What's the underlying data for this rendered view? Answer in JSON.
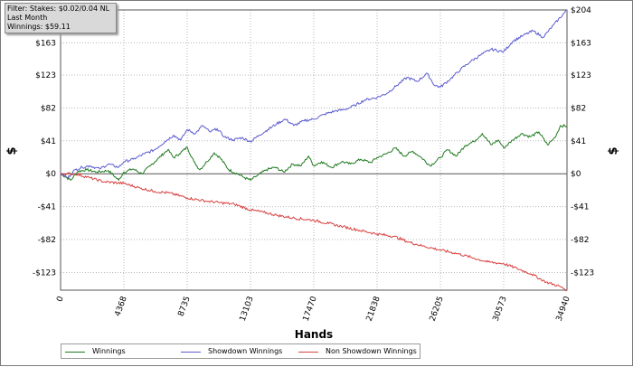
{
  "filter_box": {
    "line1": "Filter: Stakes: $0.02/0.04 NL",
    "line2": "Last Month",
    "line3": "Winnings: $59.11"
  },
  "chart_data": {
    "type": "line",
    "xlabel": "Hands",
    "ylabel": "$",
    "xlim": [
      0,
      34940
    ],
    "ylim": [
      -145,
      204
    ],
    "x_ticks": [
      0,
      4368,
      8735,
      13103,
      17470,
      21838,
      26205,
      30573,
      34940
    ],
    "x_tick_labels": [
      "0",
      "4368",
      "8735",
      "13103",
      "17470",
      "21838",
      "26205",
      "30573",
      "34940"
    ],
    "y_ticks": [
      -123,
      -82,
      -41,
      0,
      41,
      82,
      123,
      163,
      204
    ],
    "y_tick_labels": [
      "-$123",
      "-$82",
      "-$41",
      "$0",
      "$41",
      "$82",
      "$123",
      "$163",
      "$204"
    ],
    "grid": true,
    "legend_position": "bottom",
    "series": [
      {
        "name": "Winnings",
        "color": "#1f7a1f",
        "x": [
          0,
          700,
          1200,
          1800,
          2500,
          3300,
          4000,
          4368,
          5000,
          5600,
          6200,
          6800,
          7400,
          7800,
          8200,
          8735,
          9200,
          9600,
          10100,
          10600,
          11000,
          11600,
          12200,
          12700,
          13103,
          13600,
          14200,
          14800,
          15400,
          16000,
          16600,
          17100,
          17470,
          18000,
          18700,
          19400,
          20000,
          20700,
          21400,
          21838,
          22500,
          23100,
          23700,
          24300,
          24900,
          25500,
          26205,
          26700,
          27300,
          27900,
          28500,
          29100,
          29700,
          30200,
          30573,
          31200,
          31800,
          32400,
          33000,
          33600,
          34100,
          34500,
          34940
        ],
        "y": [
          0,
          -8,
          3,
          5,
          2,
          4,
          -8,
          2,
          6,
          0,
          10,
          20,
          30,
          20,
          25,
          33,
          15,
          5,
          15,
          26,
          20,
          5,
          0,
          -5,
          -8,
          -2,
          5,
          8,
          2,
          12,
          10,
          22,
          10,
          15,
          8,
          15,
          12,
          18,
          14,
          20,
          25,
          32,
          22,
          28,
          20,
          10,
          20,
          30,
          22,
          35,
          40,
          50,
          36,
          42,
          32,
          42,
          50,
          46,
          52,
          36,
          45,
          60,
          59.11
        ]
      },
      {
        "name": "Showdown Winnings",
        "color": "#5a5ad0",
        "x": [
          0,
          500,
          1000,
          1500,
          2000,
          2700,
          3300,
          4000,
          4368,
          5000,
          5800,
          6500,
          7200,
          7800,
          8300,
          8735,
          9300,
          9800,
          10300,
          10800,
          11300,
          11900,
          12500,
          13103,
          13700,
          14300,
          14900,
          15500,
          16100,
          16800,
          17470,
          18200,
          18900,
          19600,
          20300,
          21000,
          21838,
          22500,
          23200,
          23900,
          24600,
          25300,
          25800,
          26205,
          26900,
          27600,
          28300,
          29000,
          29700,
          30573,
          31200,
          31900,
          32600,
          33300,
          34000,
          34940
        ],
        "y": [
          0,
          -5,
          5,
          8,
          10,
          6,
          12,
          8,
          15,
          18,
          25,
          30,
          40,
          48,
          42,
          55,
          50,
          60,
          52,
          56,
          46,
          42,
          45,
          40,
          48,
          55,
          62,
          68,
          60,
          66,
          68,
          74,
          78,
          80,
          85,
          92,
          95,
          100,
          110,
          120,
          115,
          125,
          110,
          108,
          118,
          130,
          140,
          148,
          155,
          152,
          165,
          172,
          178,
          170,
          185,
          204
        ]
      },
      {
        "name": "Non Showdown Winnings",
        "color": "#d84040",
        "x": [
          0,
          1000,
          2000,
          3000,
          4368,
          5500,
          6500,
          7500,
          8735,
          10000,
          11000,
          12000,
          13103,
          14000,
          15000,
          16000,
          17470,
          18500,
          19500,
          20500,
          21838,
          23000,
          24000,
          25000,
          26205,
          27500,
          28500,
          29500,
          30573,
          31500,
          32500,
          33500,
          34400,
          34940
        ],
        "y": [
          0,
          0,
          -5,
          -10,
          -12,
          -18,
          -22,
          -24,
          -30,
          -34,
          -36,
          -38,
          -45,
          -48,
          -52,
          -55,
          -58,
          -62,
          -66,
          -70,
          -75,
          -78,
          -85,
          -90,
          -95,
          -100,
          -105,
          -110,
          -112,
          -118,
          -125,
          -135,
          -140,
          -145
        ]
      }
    ]
  },
  "legend": {
    "items": [
      "Winnings",
      "Showdown Winnings",
      "Non Showdown Winnings"
    ]
  }
}
